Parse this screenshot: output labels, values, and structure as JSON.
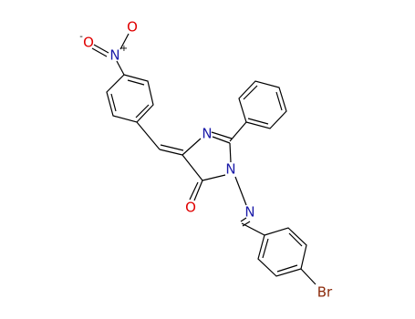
{
  "atoms": [
    {
      "label": "O",
      "charge": "-"
    },
    {
      "label": "N",
      "charge": "+"
    },
    {
      "label": "O"
    },
    {
      "label": "N"
    },
    {
      "label": "N"
    },
    {
      "label": "O"
    },
    {
      "label": "N"
    },
    {
      "label": "Br"
    }
  ]
}
